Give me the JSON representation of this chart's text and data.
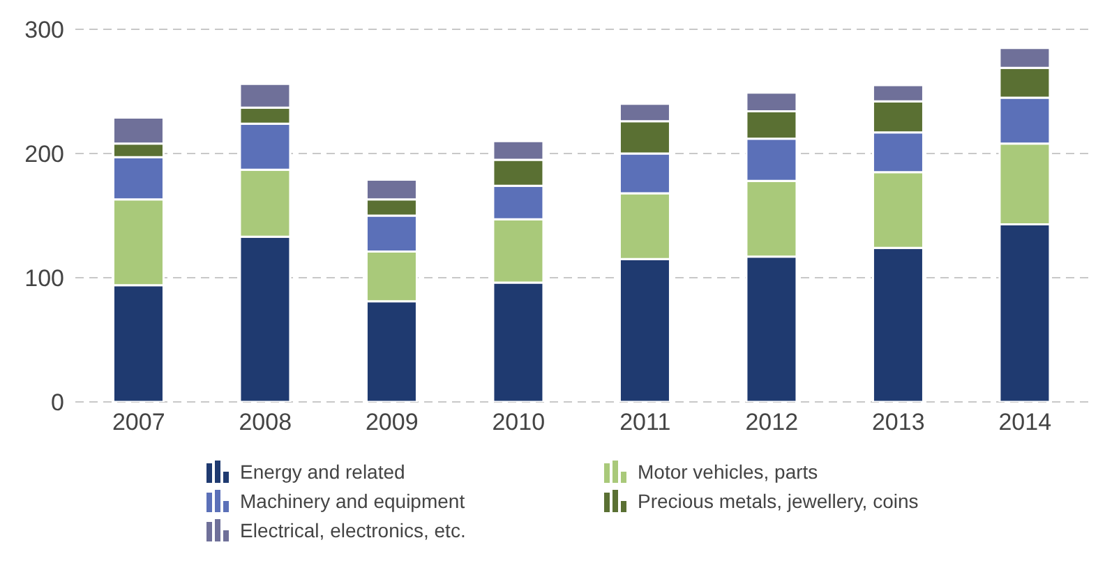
{
  "chart_data": {
    "type": "bar",
    "stacked": true,
    "categories": [
      "2007",
      "2008",
      "2009",
      "2010",
      "2011",
      "2012",
      "2013",
      "2014"
    ],
    "series": [
      {
        "name": "Energy and related",
        "color": "#1f3a70",
        "values": [
          94,
          133,
          81,
          96,
          115,
          117,
          124,
          143
        ]
      },
      {
        "name": "Motor vehicles, parts",
        "color": "#a9c97a",
        "values": [
          69,
          54,
          40,
          51,
          53,
          61,
          61,
          65
        ]
      },
      {
        "name": "Machinery and equipment",
        "color": "#5b70b8",
        "values": [
          34,
          37,
          29,
          27,
          32,
          34,
          32,
          37
        ]
      },
      {
        "name": "Precious metals, jewellery, coins",
        "color": "#5a7033",
        "values": [
          11,
          13,
          13,
          21,
          26,
          22,
          25,
          24
        ]
      },
      {
        "name": "Electrical, electronics, etc.",
        "color": "#6f7099",
        "values": [
          21,
          19,
          16,
          15,
          14,
          15,
          13,
          16
        ]
      }
    ],
    "ylim": [
      0,
      300
    ],
    "yticks": [
      0,
      100,
      200,
      300
    ],
    "grid": "y",
    "legend": "bottom"
  }
}
